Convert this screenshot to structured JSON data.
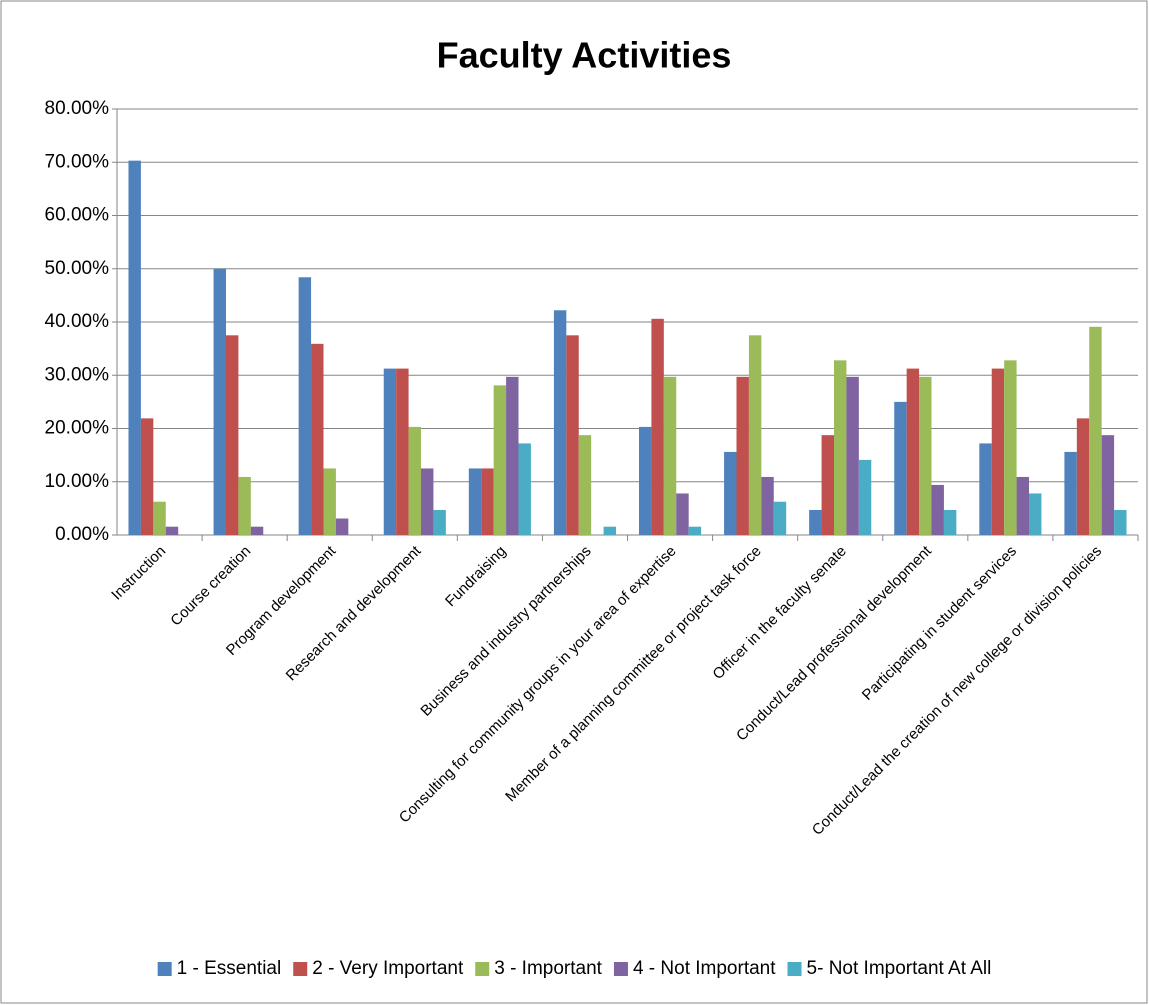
{
  "chart_data": {
    "type": "bar",
    "title": "Faculty Activities",
    "categories": [
      "Instruction",
      "Course creation",
      "Program development",
      "Research and development",
      "Fundraising",
      "Business and industry partnerships",
      "Consulting for community groups in your area of expertise",
      "Member of a planning committee or project task force",
      "Officer in the faculty senate",
      "Conduct/Lead professional development",
      "Participating in student services",
      "Conduct/Lead the creation of new college or division policies"
    ],
    "series": [
      {
        "name": "1 - Essential",
        "color": "#4f81bd",
        "values": [
          70.3,
          50,
          48.4,
          31.25,
          12.5,
          42.2,
          20.3,
          15.6,
          4.7,
          25,
          17.2,
          15.6
        ]
      },
      {
        "name": "2 - Very Important",
        "color": "#c0504d",
        "values": [
          21.9,
          37.5,
          35.9,
          31.25,
          12.5,
          37.5,
          40.6,
          29.7,
          18.75,
          31.25,
          31.25,
          21.9
        ]
      },
      {
        "name": "3 - Important",
        "color": "#9bbb59",
        "values": [
          6.25,
          10.9,
          12.5,
          20.3,
          28.1,
          18.75,
          29.7,
          37.5,
          32.8,
          29.7,
          32.8,
          39.1
        ]
      },
      {
        "name": "4 - Not Important",
        "color": "#8064a2",
        "values": [
          1.56,
          1.56,
          3.1,
          12.5,
          29.7,
          0,
          7.8,
          10.9,
          29.7,
          9.4,
          10.9,
          18.75
        ]
      },
      {
        "name": "5- Not Important At All",
        "color": "#4bacc6",
        "values": [
          0,
          0,
          0,
          4.7,
          17.2,
          1.56,
          1.56,
          6.25,
          14.1,
          4.7,
          7.8,
          4.7
        ]
      }
    ],
    "ylim": [
      0,
      80
    ],
    "yticks": [
      {
        "value": 0,
        "label": "0.00%"
      },
      {
        "value": 10,
        "label": "10.00%"
      },
      {
        "value": 20,
        "label": "20.00%"
      },
      {
        "value": 30,
        "label": "30.00%"
      },
      {
        "value": 40,
        "label": "40.00%"
      },
      {
        "value": 50,
        "label": "50.00%"
      },
      {
        "value": 60,
        "label": "60.00%"
      },
      {
        "value": 70,
        "label": "70.00%"
      },
      {
        "value": 80,
        "label": "80.00%"
      }
    ],
    "grid": true,
    "legend": "bottom"
  }
}
